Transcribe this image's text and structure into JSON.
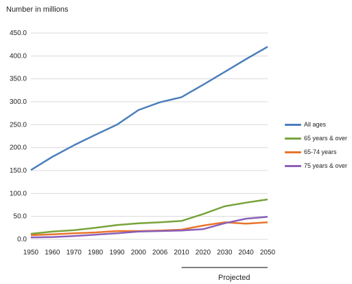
{
  "chart_data": {
    "type": "line",
    "title": "",
    "ylabel": "Number in millions",
    "xlabel": "",
    "x": [
      "1950",
      "1960",
      "1970",
      "1980",
      "1990",
      "2000",
      "2006",
      "2010",
      "2020",
      "2030",
      "2040",
      "2050"
    ],
    "ylim": [
      0,
      450
    ],
    "yticks": [
      "0.0",
      "50.0",
      "100.0",
      "150.0",
      "200.0",
      "250.0",
      "300.0",
      "350.0",
      "400.0",
      "450.0"
    ],
    "grid": "horizontal",
    "legend_position": "right",
    "series": [
      {
        "name": "All ages",
        "color": "#4a7ebb",
        "values": [
          151,
          180,
          205,
          228,
          250,
          282,
          299,
          310,
          337,
          365,
          393,
          420
        ]
      },
      {
        "name": "65 years & over",
        "color": "#77a33a",
        "values": [
          12,
          17,
          20,
          25,
          31,
          35,
          37,
          40,
          55,
          72,
          80,
          87
        ]
      },
      {
        "name": "65-74 years",
        "color": "#e8742a",
        "values": [
          9,
          11,
          13,
          15,
          18,
          18,
          19,
          21,
          30,
          37,
          34,
          37
        ]
      },
      {
        "name": "75 years & over",
        "color": "#8a5fb8",
        "values": [
          4,
          5,
          7,
          10,
          13,
          17,
          18,
          19,
          22,
          35,
          45,
          49
        ]
      }
    ],
    "annotation": "Projected"
  }
}
